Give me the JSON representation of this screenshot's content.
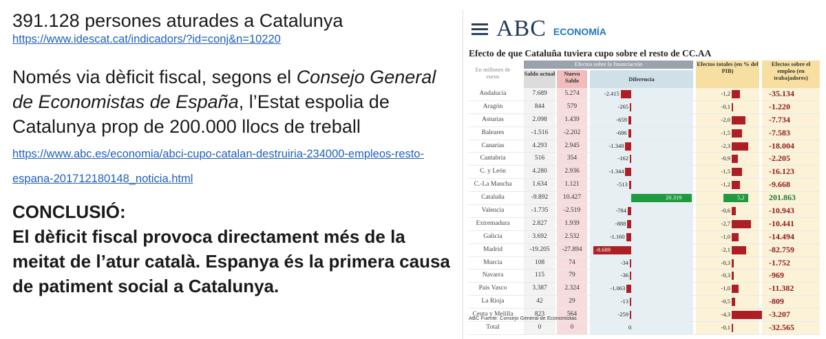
{
  "left": {
    "headline": "391.128 persones aturades a Catalunya",
    "link1": "https://www.idescat.cat/indicadors/?id=conj&n=10220",
    "para_part1": "Només via dèficit fiscal, segons el ",
    "para_italic": "Consejo General de Economistas de España",
    "para_part2": ", l’Estat espolia de Catalunya prop de 200.000 llocs de treball ",
    "link2": "https://www.abc.es/economia/abci-cupo-catalan-destruiria-234000-empleos-resto-espana-201712180148_noticia.html",
    "conclusion_title": "CONCLUSIÓ:",
    "conclusion_text": "El dèficit fiscal provoca directament més de la meitat de l’atur català. Espanya és la primera causa de patiment social a Catalunya."
  },
  "panel": {
    "logo": "ABC",
    "section": "ECONOMÍA",
    "title": "Efecto de que Cataluña tuviera cupo sobre el resto de CC.AA",
    "footer": "ABC     Fuente: Consejo General de Economistas",
    "headers": {
      "units": "En millones de euros",
      "group": "Efectos sobre la financiación",
      "saldo": "Saldo actual",
      "nuevo": "Nuevo Saldo",
      "diff": "Diferencia",
      "totales": "Efectos totales (en % del PIB)",
      "empleo": "Efectos sobre el empleo (en trabajadores)"
    },
    "rows": [
      {
        "name": "Andalucía",
        "saldo": "7.689",
        "nuevo": "5.274",
        "diff": "-2.415",
        "diff_v": -2415,
        "tot": "-1,2",
        "tot_v": -1.2,
        "emp": "-35.134"
      },
      {
        "name": "Aragón",
        "saldo": "844",
        "nuevo": "579",
        "diff": "-265",
        "diff_v": -265,
        "tot": "-0,1",
        "tot_v": -0.1,
        "emp": "-1.220"
      },
      {
        "name": "Asturias",
        "saldo": "2.098",
        "nuevo": "1.439",
        "diff": "-659",
        "diff_v": -659,
        "tot": "-2,0",
        "tot_v": -2.0,
        "emp": "-7.734"
      },
      {
        "name": "Baleares",
        "saldo": "-1.516",
        "nuevo": "-2.202",
        "diff": "-686",
        "diff_v": -686,
        "tot": "-1,5",
        "tot_v": -1.5,
        "emp": "-7.583"
      },
      {
        "name": "Canarias",
        "saldo": "4.293",
        "nuevo": "2.945",
        "diff": "-1.348",
        "diff_v": -1348,
        "tot": "-2,3",
        "tot_v": -2.3,
        "emp": "-18.004"
      },
      {
        "name": "Cantabria",
        "saldo": "516",
        "nuevo": "354",
        "diff": "-162",
        "diff_v": -162,
        "tot": "-0,9",
        "tot_v": -0.9,
        "emp": "-2.205"
      },
      {
        "name": "C. y León",
        "saldo": "4.280",
        "nuevo": "2.936",
        "diff": "-1.344",
        "diff_v": -1344,
        "tot": "-1,5",
        "tot_v": -1.5,
        "emp": "-16.123"
      },
      {
        "name": "C.-La Mancha",
        "saldo": "1.634",
        "nuevo": "1.121",
        "diff": "-513",
        "diff_v": -513,
        "tot": "-1,2",
        "tot_v": -1.2,
        "emp": "-9.668"
      },
      {
        "name": "Cataluña",
        "saldo": "-9.892",
        "nuevo": "10.427",
        "diff": "20.319",
        "diff_v": 20319,
        "tot": "5,2",
        "tot_v": 5.2,
        "emp": "201.863"
      },
      {
        "name": "Valencia",
        "saldo": "-1.735",
        "nuevo": "-2.519",
        "diff": "-784",
        "diff_v": -784,
        "tot": "-0,6",
        "tot_v": -0.6,
        "emp": "-10.943"
      },
      {
        "name": "Extremadura",
        "saldo": "2.827",
        "nuevo": "1.939",
        "diff": "-888",
        "diff_v": -888,
        "tot": "-2,7",
        "tot_v": -2.7,
        "emp": "-10.441"
      },
      {
        "name": "Galicia",
        "saldo": "3.692",
        "nuevo": "2.532",
        "diff": "-1.160",
        "diff_v": -1160,
        "tot": "-1,0",
        "tot_v": -1.0,
        "emp": "-14.494"
      },
      {
        "name": "Madrid",
        "saldo": "-19.205",
        "nuevo": "-27.894",
        "diff": "-8.689",
        "diff_v": -8689,
        "tot": "-2,1",
        "tot_v": -2.1,
        "emp": "-82.759"
      },
      {
        "name": "Murcia",
        "saldo": "108",
        "nuevo": "74",
        "diff": "-34",
        "diff_v": -34,
        "tot": "-0,3",
        "tot_v": -0.3,
        "emp": "-1.752"
      },
      {
        "name": "Navarra",
        "saldo": "115",
        "nuevo": "79",
        "diff": "-36",
        "diff_v": -36,
        "tot": "-0,3",
        "tot_v": -0.3,
        "emp": "-969"
      },
      {
        "name": "País Vasco",
        "saldo": "3.387",
        "nuevo": "2.324",
        "diff": "-1.063",
        "diff_v": -1063,
        "tot": "-1,0",
        "tot_v": -1.0,
        "emp": "-11.382"
      },
      {
        "name": "La Rioja",
        "saldo": "42",
        "nuevo": "29",
        "diff": "-13",
        "diff_v": -13,
        "tot": "-0,5",
        "tot_v": -0.5,
        "emp": "-809"
      },
      {
        "name": "Ceuta y Melilla",
        "saldo": "823",
        "nuevo": "564",
        "diff": "-259",
        "diff_v": -259,
        "tot": "-4,3",
        "tot_v": -4.3,
        "emp": "-3.207"
      },
      {
        "name": "Total",
        "saldo": "0",
        "nuevo": "0",
        "diff": "0",
        "diff_v": 0,
        "tot": "-0,1",
        "tot_v": -0.1,
        "emp": "-32.565"
      }
    ]
  }
}
